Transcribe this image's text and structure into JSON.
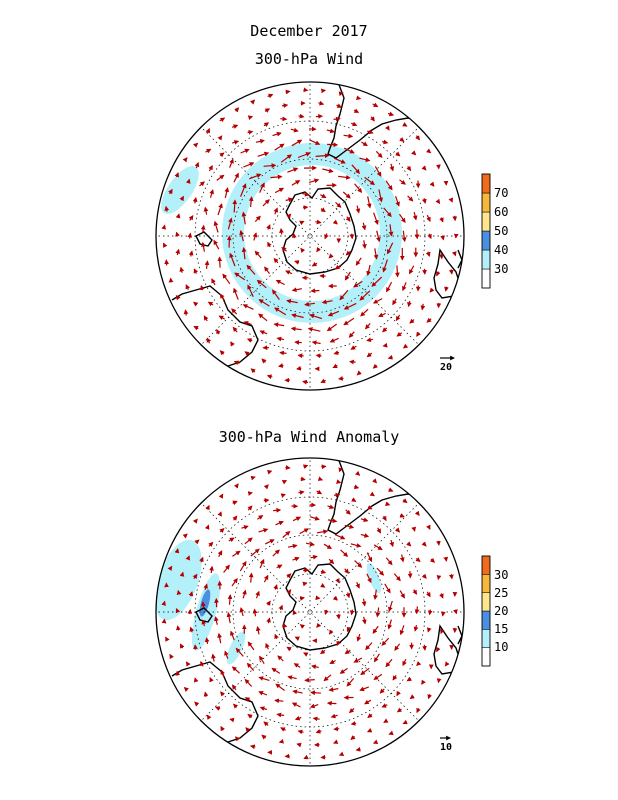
{
  "figure": {
    "title_line1": "December 2017",
    "panels": [
      {
        "title": "300-hPa Wind",
        "reference_vector_label": "20",
        "colorbar": {
          "tick_labels": [
            "30",
            "40",
            "50",
            "60",
            "70"
          ],
          "bins": [
            {
              "range": "<30",
              "color": "#ffffff"
            },
            {
              "range": "30-40",
              "color": "#b4f0fa"
            },
            {
              "range": "40-50",
              "color": "#4a8fe0"
            },
            {
              "range": "50-60",
              "color": "#ffe68c"
            },
            {
              "range": "60-70",
              "color": "#f5b83c"
            },
            {
              "range": ">70",
              "color": "#f26b1d"
            }
          ]
        }
      },
      {
        "title": "300-hPa Wind Anomaly",
        "reference_vector_label": "10",
        "colorbar": {
          "tick_labels": [
            "10",
            "15",
            "20",
            "25",
            "30"
          ],
          "bins": [
            {
              "range": "<10",
              "color": "#ffffff"
            },
            {
              "range": "10-15",
              "color": "#b4f0fa"
            },
            {
              "range": "15-20",
              "color": "#4a8fe0"
            },
            {
              "range": "20-25",
              "color": "#ffe68c"
            },
            {
              "range": "25-30",
              "color": "#f5b83c"
            },
            {
              "range": ">30",
              "color": "#f26b1d"
            }
          ]
        }
      }
    ],
    "colors": {
      "vector": "#b50000",
      "shading": "#b4f0fa",
      "shading_strong": "#4a8fe0",
      "coast": "#000000",
      "grid": "#000000"
    }
  }
}
